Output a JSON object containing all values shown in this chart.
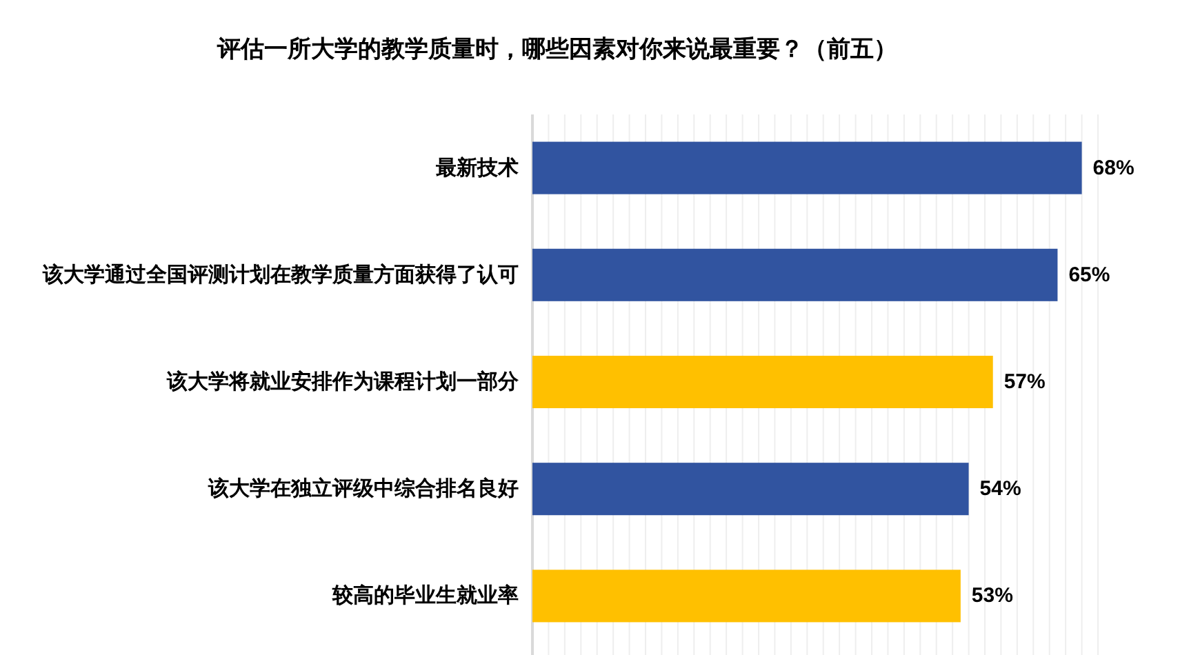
{
  "chart_data": {
    "type": "bar",
    "orientation": "horizontal",
    "title": "评估一所大学的教学质量时，哪些因素对你来说最重要？（前五）",
    "categories": [
      "最新技术",
      "该大学通过全国评测计划在教学质量方面获得了认可",
      "该大学将就业安排作为课程计划一部分",
      "该大学在独立评级中综合排名良好",
      "较高的毕业生就业率"
    ],
    "values": [
      68,
      65,
      57,
      54,
      53
    ],
    "colors": [
      "#3154a0",
      "#3154a0",
      "#ffc000",
      "#3154a0",
      "#ffc000"
    ],
    "value_labels": [
      "68%",
      "65%",
      "57%",
      "54%",
      "53%"
    ],
    "xlim": [
      0,
      70
    ],
    "xticks": [
      {
        "value": 0,
        "label": null
      },
      {
        "value": 2,
        "label": null
      },
      {
        "value": 4,
        "label": null
      },
      {
        "value": 6,
        "label": null
      },
      {
        "value": 8,
        "label": null
      },
      {
        "value": 10,
        "label": null
      },
      {
        "value": 12,
        "label": null
      },
      {
        "value": 14,
        "label": null
      },
      {
        "value": 16,
        "label": null
      },
      {
        "value": 18,
        "label": null
      },
      {
        "value": 20,
        "label": null
      },
      {
        "value": 22,
        "label": null
      },
      {
        "value": 24,
        "label": null
      },
      {
        "value": 26,
        "label": null
      },
      {
        "value": 28,
        "label": null
      },
      {
        "value": 30,
        "label": null
      },
      {
        "value": 32,
        "label": null
      },
      {
        "value": 34,
        "label": null
      },
      {
        "value": 36,
        "label": null
      },
      {
        "value": 38,
        "label": null
      },
      {
        "value": 40,
        "label": null
      },
      {
        "value": 42,
        "label": null
      },
      {
        "value": 44,
        "label": null
      },
      {
        "value": 46,
        "label": null
      },
      {
        "value": 48,
        "label": null
      },
      {
        "value": 50,
        "label": null
      },
      {
        "value": 52,
        "label": null
      },
      {
        "value": 54,
        "label": null
      },
      {
        "value": 56,
        "label": null
      },
      {
        "value": 58,
        "label": null
      },
      {
        "value": 60,
        "label": null
      },
      {
        "value": 62,
        "label": null
      },
      {
        "value": 64,
        "label": null
      },
      {
        "value": 66,
        "label": null
      },
      {
        "value": 68,
        "label": null
      },
      {
        "value": 70,
        "label": null
      }
    ],
    "grid": "x",
    "tick_labels": "y"
  }
}
